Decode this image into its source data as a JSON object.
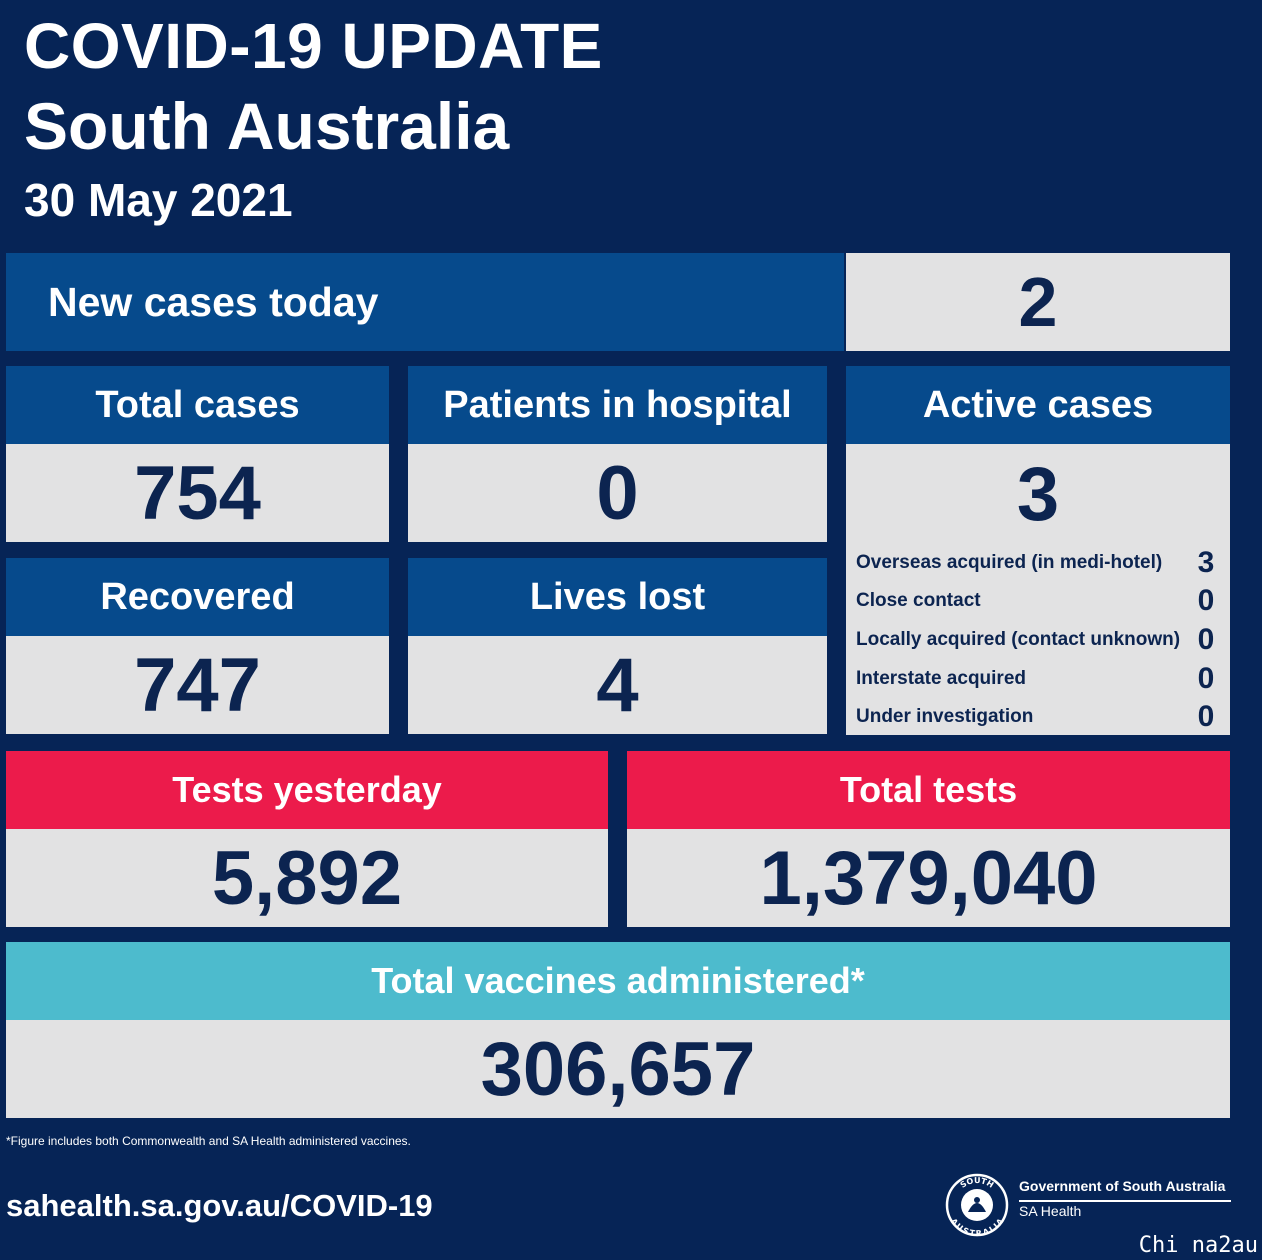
{
  "header": {
    "title": "COVID-19 UPDATE",
    "subtitle": "South Australia",
    "date": "30 May 2021"
  },
  "new_cases": {
    "label": "New cases today",
    "value": "2"
  },
  "total_cases": {
    "label": "Total cases",
    "value": "754"
  },
  "hospital": {
    "label": "Patients in hospital",
    "value": "0"
  },
  "active": {
    "label": "Active cases",
    "value": "3",
    "breakdown": [
      {
        "label": "Overseas acquired (in medi-hotel)",
        "value": "3"
      },
      {
        "label": "Close contact",
        "value": "0"
      },
      {
        "label": "Locally acquired (contact unknown)",
        "value": "0"
      },
      {
        "label": "Interstate acquired",
        "value": "0"
      },
      {
        "label": "Under investigation",
        "value": "0"
      }
    ]
  },
  "recovered": {
    "label": "Recovered",
    "value": "747"
  },
  "lives_lost": {
    "label": "Lives lost",
    "value": "4"
  },
  "tests_yesterday": {
    "label": "Tests yesterday",
    "value": "5,892"
  },
  "total_tests": {
    "label": "Total tests",
    "value": "1,379,040"
  },
  "vaccines": {
    "label": "Total vaccines administered*",
    "value": "306,657"
  },
  "footnote": "*Figure includes both Commonwealth and SA Health administered vaccines.",
  "website": "sahealth.sa.gov.au/COVID-19",
  "government": {
    "name": "Government of South Australia",
    "department": "SA Health",
    "seal_text_top": "SOUTH",
    "seal_text_bottom": "AUSTRALIA"
  },
  "watermark": "Chi na2au",
  "colors": {
    "background": "#062456",
    "header_blue": "#064a8c",
    "value_bg": "#e2e2e3",
    "value_text": "#0c2450",
    "tests_red": "#ec1b4b",
    "vaccine_teal": "#4dbbcd"
  }
}
